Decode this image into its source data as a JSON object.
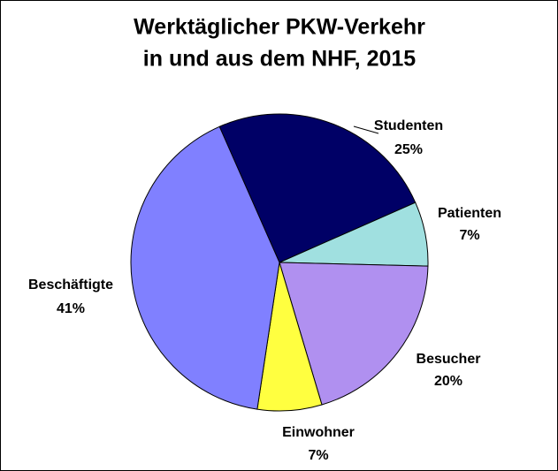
{
  "chart_data": {
    "type": "pie",
    "title": [
      "Werktäglicher PKW-Verkehr",
      "in und aus dem NHF, 2015"
    ],
    "categories": [
      "Studenten",
      "Patienten",
      "Besucher",
      "Einwohner",
      "Beschäftigte"
    ],
    "values": [
      25,
      7,
      20,
      7,
      41
    ],
    "value_labels": [
      "25%",
      "7%",
      "20%",
      "7%",
      "41%"
    ],
    "colors": [
      "#000066",
      "#a0e0e0",
      "#b090f0",
      "#ffff40",
      "#8080ff"
    ]
  }
}
